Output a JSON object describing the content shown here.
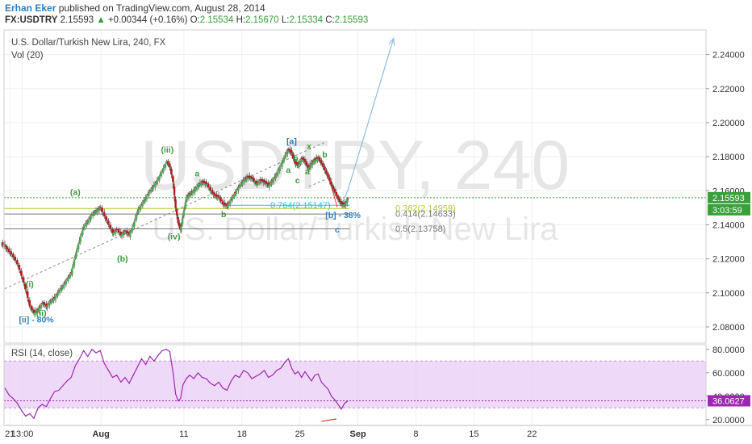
{
  "header": {
    "author": "Erhan Eker",
    "published_text": "published on TradingView.com, August 28, 2014",
    "symbol": "FX:USDTRY",
    "last": "2.15593",
    "change_arrow": "▲",
    "change": "+0.00344 (+0.16%)",
    "o_label": "O:",
    "o": "2.15534",
    "h_label": "H:",
    "h": "2.15670",
    "l_label": "L:",
    "l": "2.15334",
    "c_label": "C:",
    "c": "2.15593"
  },
  "main": {
    "title": "U.S. Dollar/Turkish New Lira, 240, FX",
    "vol_label": "Vol (20)",
    "watermark_symbol": "USDTRY, 240",
    "watermark_name": "U.S. Dollar/Turkish New Lira"
  },
  "rsi": {
    "title": "RSI (14, close)"
  },
  "colors": {
    "up_candle": "#4caf50",
    "down_candle": "#b71c1c",
    "price_line": "#2ca02c",
    "rsi_line": "#9c27b0",
    "rsi_band": "#e8c9f5",
    "wave_label": "#3a9b3a",
    "wave_label_blue": "#2a7fc4",
    "arrow": "#8fbde0"
  },
  "chart_data": {
    "type": "candlestick",
    "x_tick_labels": [
      "21",
      "13:00",
      "Aug",
      "11",
      "18",
      "25",
      "Sep",
      "8",
      "15",
      "22"
    ],
    "x_tick_days": [
      21,
      22.5,
      32,
      42,
      49,
      56,
      63,
      70,
      77,
      84
    ],
    "x_range_days": [
      20.3,
      105
    ],
    "y_ticks": [
      "2.24000",
      "2.22000",
      "2.20000",
      "2.18000",
      "2.16000",
      "2.14000",
      "2.12000",
      "2.10000",
      "2.08000"
    ],
    "ylim": [
      2.0705,
      2.2545
    ],
    "price_label": "2.15593",
    "price": 2.15593,
    "countdown": "3:03:59",
    "close_path": [
      [
        20.4,
        2.127
      ],
      [
        20.9,
        2.124
      ],
      [
        21.4,
        2.121
      ],
      [
        21.9,
        2.117
      ],
      [
        22.4,
        2.11
      ],
      [
        22.9,
        2.102
      ],
      [
        23.4,
        2.092
      ],
      [
        23.9,
        2.088
      ],
      [
        24.4,
        2.09
      ],
      [
        24.9,
        2.094
      ],
      [
        25.4,
        2.092
      ],
      [
        25.9,
        2.095
      ],
      [
        26.4,
        2.097
      ],
      [
        26.9,
        2.101
      ],
      [
        27.4,
        2.104
      ],
      [
        27.9,
        2.108
      ],
      [
        28.4,
        2.112
      ],
      [
        28.9,
        2.122
      ],
      [
        29.4,
        2.131
      ],
      [
        29.9,
        2.139
      ],
      [
        30.4,
        2.142
      ],
      [
        30.9,
        2.146
      ],
      [
        31.4,
        2.148
      ],
      [
        31.9,
        2.15
      ],
      [
        32.4,
        2.145
      ],
      [
        32.9,
        2.14
      ],
      [
        33.4,
        2.135
      ],
      [
        33.9,
        2.137
      ],
      [
        34.4,
        2.134
      ],
      [
        34.9,
        2.136
      ],
      [
        35.4,
        2.134
      ],
      [
        35.9,
        2.14
      ],
      [
        36.4,
        2.148
      ],
      [
        36.9,
        2.152
      ],
      [
        37.4,
        2.156
      ],
      [
        37.9,
        2.16
      ],
      [
        38.4,
        2.163
      ],
      [
        38.9,
        2.167
      ],
      [
        39.4,
        2.172
      ],
      [
        39.9,
        2.177
      ],
      [
        40.3,
        2.174
      ],
      [
        40.7,
        2.165
      ],
      [
        41.0,
        2.15
      ],
      [
        41.3,
        2.141
      ],
      [
        41.6,
        2.137
      ],
      [
        41.9,
        2.146
      ],
      [
        42.3,
        2.156
      ],
      [
        42.7,
        2.158
      ],
      [
        43.2,
        2.16
      ],
      [
        43.7,
        2.163
      ],
      [
        44.2,
        2.165
      ],
      [
        44.7,
        2.164
      ],
      [
        45.2,
        2.16
      ],
      [
        45.7,
        2.157
      ],
      [
        46.2,
        2.156
      ],
      [
        46.7,
        2.152
      ],
      [
        47.2,
        2.151
      ],
      [
        47.7,
        2.155
      ],
      [
        48.2,
        2.159
      ],
      [
        48.7,
        2.163
      ],
      [
        49.2,
        2.166
      ],
      [
        49.7,
        2.168
      ],
      [
        50.2,
        2.167
      ],
      [
        50.7,
        2.164
      ],
      [
        51.2,
        2.166
      ],
      [
        51.7,
        2.165
      ],
      [
        52.2,
        2.163
      ],
      [
        52.7,
        2.166
      ],
      [
        53.2,
        2.17
      ],
      [
        53.7,
        2.175
      ],
      [
        54.2,
        2.181
      ],
      [
        54.6,
        2.184
      ],
      [
        55.0,
        2.182
      ],
      [
        55.4,
        2.176
      ],
      [
        55.8,
        2.175
      ],
      [
        56.2,
        2.179
      ],
      [
        56.6,
        2.177
      ],
      [
        57.0,
        2.173
      ],
      [
        57.4,
        2.176
      ],
      [
        57.8,
        2.178
      ],
      [
        58.2,
        2.179
      ],
      [
        58.6,
        2.176
      ],
      [
        59.0,
        2.172
      ],
      [
        59.4,
        2.168
      ],
      [
        59.8,
        2.163
      ],
      [
        60.2,
        2.159
      ],
      [
        60.6,
        2.155
      ],
      [
        61.0,
        2.152
      ],
      [
        61.4,
        2.152
      ],
      [
        61.8,
        2.155
      ]
    ],
    "volume_panel": "Vol (20)",
    "fib_levels": [
      {
        "label": "0.764(2.15147)",
        "value": 2.15147,
        "color": "#33bbdd"
      },
      {
        "label": "0.382(2.14959)",
        "value": 2.14959,
        "color": "#b5c93a"
      },
      {
        "label": "0.414(2.14633)",
        "value": 2.14633,
        "color": "#777777"
      },
      {
        "label": "0.5(2.13758)",
        "value": 2.13758,
        "color": "#777777"
      }
    ],
    "wave_labels": [
      {
        "text": "[ii] - 80%",
        "x": 24.2,
        "y": 2.0825,
        "color": "blue"
      },
      {
        "text": "(ii)",
        "x": 24.8,
        "y": 2.0865,
        "color": "green"
      },
      {
        "text": "(i)",
        "x": 23.4,
        "y": 2.1035,
        "color": "green"
      },
      {
        "text": "(a)",
        "x": 28.9,
        "y": 2.1575,
        "color": "green"
      },
      {
        "text": "(iii)",
        "x": 40.0,
        "y": 2.1825,
        "color": "green"
      },
      {
        "text": "(b)",
        "x": 34.6,
        "y": 2.1185,
        "color": "green"
      },
      {
        "text": "(iv)",
        "x": 40.8,
        "y": 2.1315,
        "color": "green"
      },
      {
        "text": "a",
        "x": 43.6,
        "y": 2.1685,
        "color": "green"
      },
      {
        "text": "b",
        "x": 46.8,
        "y": 2.1445,
        "color": "green"
      },
      {
        "text": "[a]",
        "x": 55.0,
        "y": 2.1875,
        "color": "blue"
      },
      {
        "text": "b",
        "x": 55.5,
        "y": 2.1775,
        "color": "green"
      },
      {
        "text": "a",
        "x": 54.6,
        "y": 2.1705,
        "color": "green"
      },
      {
        "text": "c",
        "x": 55.7,
        "y": 2.1645,
        "color": "green"
      },
      {
        "text": "x",
        "x": 57.1,
        "y": 2.1845,
        "color": "green"
      },
      {
        "text": "a",
        "x": 56.9,
        "y": 2.1695,
        "color": "green"
      },
      {
        "text": "b",
        "x": 59.0,
        "y": 2.1795,
        "color": "green"
      },
      {
        "text": "c",
        "x": 60.5,
        "y": 2.1355,
        "color": "blue"
      },
      {
        "text": "[b] - 38%",
        "x": 61.2,
        "y": 2.144,
        "color": "blue"
      }
    ],
    "trendlines": [
      {
        "from": [
          20.4,
          2.1025
        ],
        "to": [
          59.0,
          2.1885
        ],
        "style": "dashed"
      },
      {
        "from": [
          55.5,
          2.1745
        ],
        "to": [
          59.0,
          2.18
        ],
        "style": "dashed"
      },
      {
        "from": [
          57.1,
          2.1625
        ],
        "to": [
          59.0,
          2.1665
        ],
        "style": "dashed"
      }
    ],
    "projection_arrow": {
      "from": [
        61.8,
        2.1605
      ],
      "to": [
        67.3,
        2.2495
      ]
    },
    "rsi": {
      "ylim": [
        15,
        84
      ],
      "y_ticks": [
        "80.0000",
        "60.0000",
        "40.0000",
        "20.0000"
      ],
      "upper_band": 70,
      "lower_band": 30,
      "value_label": "36.0627",
      "value": 36.0627,
      "path": [
        [
          20.4,
          47
        ],
        [
          20.9,
          41
        ],
        [
          21.4,
          38
        ],
        [
          21.9,
          34
        ],
        [
          22.4,
          28
        ],
        [
          22.9,
          23
        ],
        [
          23.4,
          25
        ],
        [
          23.9,
          21
        ],
        [
          24.4,
          30
        ],
        [
          24.9,
          33
        ],
        [
          25.4,
          31
        ],
        [
          25.9,
          38
        ],
        [
          26.4,
          44
        ],
        [
          26.9,
          45
        ],
        [
          27.4,
          49
        ],
        [
          27.9,
          53
        ],
        [
          28.4,
          56
        ],
        [
          28.9,
          66
        ],
        [
          29.4,
          72
        ],
        [
          29.9,
          79
        ],
        [
          30.4,
          74
        ],
        [
          30.9,
          80
        ],
        [
          31.4,
          77
        ],
        [
          31.9,
          79
        ],
        [
          32.4,
          68
        ],
        [
          32.9,
          62
        ],
        [
          33.4,
          56
        ],
        [
          33.9,
          58
        ],
        [
          34.4,
          52
        ],
        [
          34.9,
          56
        ],
        [
          35.4,
          51
        ],
        [
          35.9,
          58
        ],
        [
          36.4,
          65
        ],
        [
          36.9,
          72
        ],
        [
          37.4,
          67
        ],
        [
          37.9,
          74
        ],
        [
          38.4,
          70
        ],
        [
          38.9,
          75
        ],
        [
          39.4,
          79
        ],
        [
          39.9,
          80
        ],
        [
          40.3,
          78
        ],
        [
          40.7,
          60
        ],
        [
          41.0,
          42
        ],
        [
          41.3,
          36
        ],
        [
          41.6,
          38
        ],
        [
          41.9,
          50
        ],
        [
          42.3,
          55
        ],
        [
          42.7,
          58
        ],
        [
          43.2,
          55
        ],
        [
          43.7,
          60
        ],
        [
          44.2,
          56
        ],
        [
          44.7,
          55
        ],
        [
          45.2,
          51
        ],
        [
          45.7,
          49
        ],
        [
          46.2,
          52
        ],
        [
          46.7,
          47
        ],
        [
          47.2,
          45
        ],
        [
          47.7,
          53
        ],
        [
          48.2,
          58
        ],
        [
          48.7,
          56
        ],
        [
          49.2,
          62
        ],
        [
          49.7,
          60
        ],
        [
          50.2,
          55
        ],
        [
          50.7,
          57
        ],
        [
          51.2,
          59
        ],
        [
          51.7,
          62
        ],
        [
          52.2,
          56
        ],
        [
          52.7,
          58
        ],
        [
          53.2,
          62
        ],
        [
          53.7,
          64
        ],
        [
          54.2,
          69
        ],
        [
          54.6,
          72
        ],
        [
          55.0,
          64
        ],
        [
          55.4,
          59
        ],
        [
          55.8,
          61
        ],
        [
          56.2,
          56
        ],
        [
          56.6,
          61
        ],
        [
          57.0,
          57
        ],
        [
          57.4,
          53
        ],
        [
          57.8,
          58
        ],
        [
          58.2,
          59
        ],
        [
          58.6,
          52
        ],
        [
          59.0,
          49
        ],
        [
          59.4,
          46
        ],
        [
          59.8,
          40
        ],
        [
          60.2,
          37
        ],
        [
          60.6,
          33
        ],
        [
          61.0,
          29
        ],
        [
          61.4,
          34
        ],
        [
          61.8,
          36
        ]
      ]
    }
  }
}
